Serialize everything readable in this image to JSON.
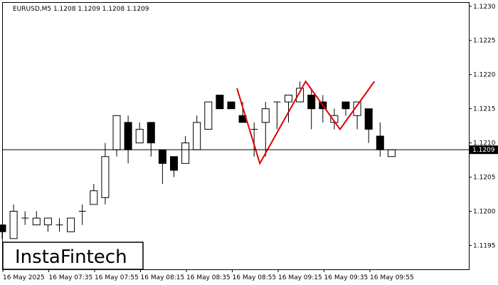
{
  "chart_data": {
    "type": "candlestick",
    "title": "EURUSD,M5  1.1208 1.1209 1.1208 1.1209",
    "watermark": "InstaFintech",
    "current_price": "1.1209",
    "y_ticks": [
      "1.1230",
      "1.1225",
      "1.1220",
      "1.1215",
      "1.1210",
      "1.1205",
      "1.1200",
      "1.1195"
    ],
    "x_ticks": [
      "16 May 2025",
      "16 May 07:35",
      "16 May 07:55",
      "16 May 08:15",
      "16 May 08:35",
      "16 May 08:55",
      "16 May 09:15",
      "16 May 09:35",
      "16 May 09:55"
    ],
    "ylim": [
      1.11915,
      1.12305
    ],
    "candles": [
      {
        "o": 1.1198,
        "h": 1.1198,
        "l": 1.1196,
        "c": 1.1197
      },
      {
        "o": 1.1196,
        "h": 1.1201,
        "l": 1.1196,
        "c": 1.12
      },
      {
        "o": 1.1199,
        "h": 1.12,
        "l": 1.1198,
        "c": 1.1199
      },
      {
        "o": 1.1198,
        "h": 1.12,
        "l": 1.1198,
        "c": 1.1199
      },
      {
        "o": 1.1198,
        "h": 1.1199,
        "l": 1.1197,
        "c": 1.1199
      },
      {
        "o": 1.1198,
        "h": 1.1199,
        "l": 1.1197,
        "c": 1.1198
      },
      {
        "o": 1.1197,
        "h": 1.1199,
        "l": 1.1197,
        "c": 1.1199
      },
      {
        "o": 1.12,
        "h": 1.1201,
        "l": 1.1198,
        "c": 1.12
      },
      {
        "o": 1.1201,
        "h": 1.1204,
        "l": 1.1201,
        "c": 1.1203
      },
      {
        "o": 1.1202,
        "h": 1.121,
        "l": 1.1201,
        "c": 1.1208
      },
      {
        "o": 1.1209,
        "h": 1.1214,
        "l": 1.1208,
        "c": 1.1214
      },
      {
        "o": 1.1213,
        "h": 1.1214,
        "l": 1.1207,
        "c": 1.1209
      },
      {
        "o": 1.121,
        "h": 1.1213,
        "l": 1.121,
        "c": 1.1212
      },
      {
        "o": 1.1213,
        "h": 1.1213,
        "l": 1.1208,
        "c": 1.121
      },
      {
        "o": 1.1209,
        "h": 1.1209,
        "l": 1.1204,
        "c": 1.1207
      },
      {
        "o": 1.1208,
        "h": 1.1208,
        "l": 1.1205,
        "c": 1.1206
      },
      {
        "o": 1.1207,
        "h": 1.1211,
        "l": 1.1207,
        "c": 1.121
      },
      {
        "o": 1.1209,
        "h": 1.1214,
        "l": 1.1209,
        "c": 1.1213
      },
      {
        "o": 1.1212,
        "h": 1.1216,
        "l": 1.1212,
        "c": 1.1216
      },
      {
        "o": 1.1217,
        "h": 1.1217,
        "l": 1.1215,
        "c": 1.1215
      },
      {
        "o": 1.1216,
        "h": 1.1216,
        "l": 1.1215,
        "c": 1.1215
      },
      {
        "o": 1.1214,
        "h": 1.1216,
        "l": 1.1213,
        "c": 1.1213
      },
      {
        "o": 1.1212,
        "h": 1.1213,
        "l": 1.1208,
        "c": 1.1212
      },
      {
        "o": 1.1213,
        "h": 1.1216,
        "l": 1.1208,
        "c": 1.1215
      },
      {
        "o": 1.1216,
        "h": 1.1216,
        "l": 1.1212,
        "c": 1.1216
      },
      {
        "o": 1.1216,
        "h": 1.1217,
        "l": 1.1213,
        "c": 1.1217
      },
      {
        "o": 1.1216,
        "h": 1.1219,
        "l": 1.1216,
        "c": 1.1218
      },
      {
        "o": 1.1217,
        "h": 1.1218,
        "l": 1.1212,
        "c": 1.1215
      },
      {
        "o": 1.1216,
        "h": 1.1217,
        "l": 1.1213,
        "c": 1.1215
      },
      {
        "o": 1.1213,
        "h": 1.1215,
        "l": 1.1212,
        "c": 1.1214
      },
      {
        "o": 1.1216,
        "h": 1.1216,
        "l": 1.1214,
        "c": 1.1215
      },
      {
        "o": 1.1214,
        "h": 1.1216,
        "l": 1.1212,
        "c": 1.1216
      },
      {
        "o": 1.1215,
        "h": 1.1215,
        "l": 1.121,
        "c": 1.1212
      },
      {
        "o": 1.1211,
        "h": 1.1213,
        "l": 1.1208,
        "c": 1.1209
      },
      {
        "o": 1.1208,
        "h": 1.1209,
        "l": 1.1208,
        "c": 1.1209
      }
    ],
    "pattern": [
      {
        "i": 20.5,
        "p": 1.1218
      },
      {
        "i": 22.5,
        "p": 1.1207
      },
      {
        "i": 26.5,
        "p": 1.1219
      },
      {
        "i": 29.5,
        "p": 1.1212
      },
      {
        "i": 32.5,
        "p": 1.1219
      }
    ],
    "pattern_color": "#e00000"
  }
}
